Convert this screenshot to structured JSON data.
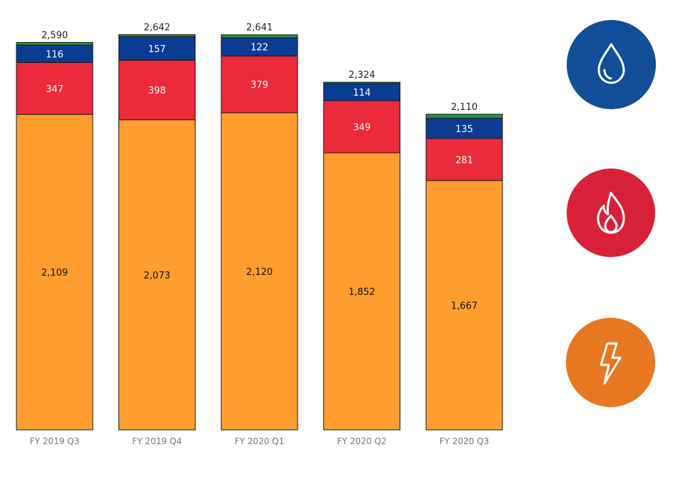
{
  "chart_data": {
    "type": "bar",
    "stacked": true,
    "categories": [
      "FY 2019 Q3",
      "FY 2019 Q4",
      "FY 2020 Q1",
      "FY 2020 Q2",
      "FY 2020 Q3"
    ],
    "totals": [
      2590,
      2642,
      2641,
      2324,
      2110
    ],
    "total_labels": [
      "2,590",
      "2,642",
      "2,641",
      "2,324",
      "2,110"
    ],
    "series": [
      {
        "color": "#FF9E2F",
        "text_color": "#111111",
        "values": [
          2109,
          2073,
          2120,
          1852,
          1667
        ],
        "labels": [
          "2,109",
          "2,073",
          "2,120",
          "1,852",
          "1,667"
        ]
      },
      {
        "color": "#EB2A3C",
        "text_color": "#ffffff",
        "values": [
          347,
          398,
          379,
          349,
          281
        ],
        "labels": [
          "347",
          "398",
          "379",
          "349",
          "281"
        ]
      },
      {
        "color": "#0B3C93",
        "text_color": "#ffffff",
        "values": [
          116,
          157,
          122,
          114,
          135
        ],
        "labels": [
          "116",
          "157",
          "122",
          "114",
          "135"
        ]
      },
      {
        "color": "#23913F",
        "text_color": "#ffffff",
        "values": [
          18,
          14,
          20,
          9,
          27
        ],
        "labels": []
      }
    ],
    "title": "",
    "xlabel": "",
    "ylabel": "",
    "ylim": [
      0,
      2700
    ],
    "grid": false,
    "legend": "none"
  },
  "icons": [
    {
      "name": "water-drop-icon",
      "color": "#114E97"
    },
    {
      "name": "flame-icon",
      "color": "#D7213A"
    },
    {
      "name": "lightning-bolt-icon",
      "color": "#E87722"
    }
  ]
}
